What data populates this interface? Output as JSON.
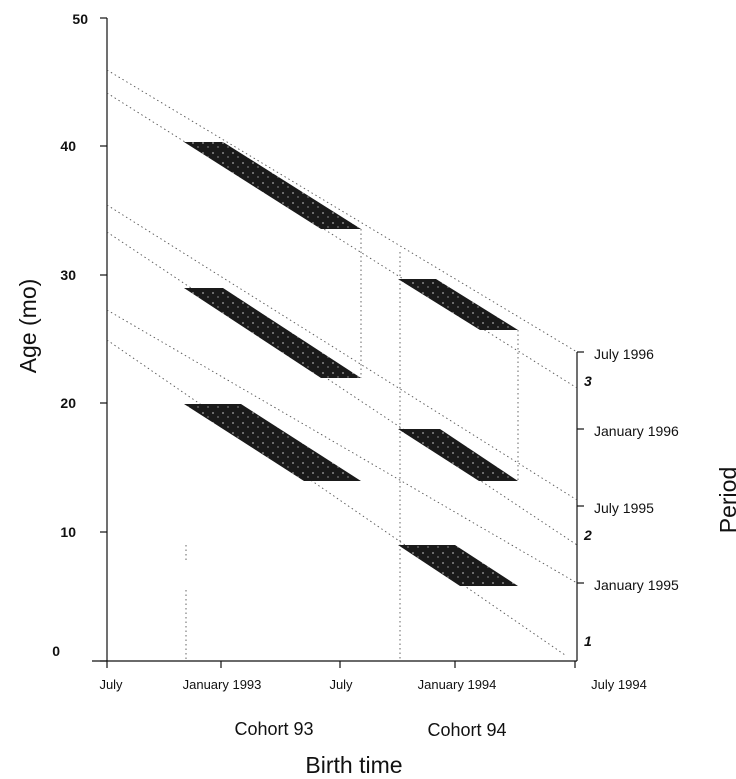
{
  "axes": {
    "y_title": "Age (mo)",
    "x_title": "Birth time",
    "right_title": "Period",
    "y_ticks": [
      "50",
      "40",
      "30",
      "20",
      "10",
      "0"
    ],
    "x_ticks": [
      "July",
      "January 1993",
      "July",
      "January 1994",
      "July 1994"
    ]
  },
  "cohorts": [
    "Cohort 93",
    "Cohort 94"
  ],
  "period_axis": {
    "dates": [
      "July 1996",
      "January 1996",
      "July 1995",
      "January 1995"
    ],
    "numbers": [
      "3",
      "2",
      "1"
    ]
  },
  "fill_color": "#1a1a1a"
}
